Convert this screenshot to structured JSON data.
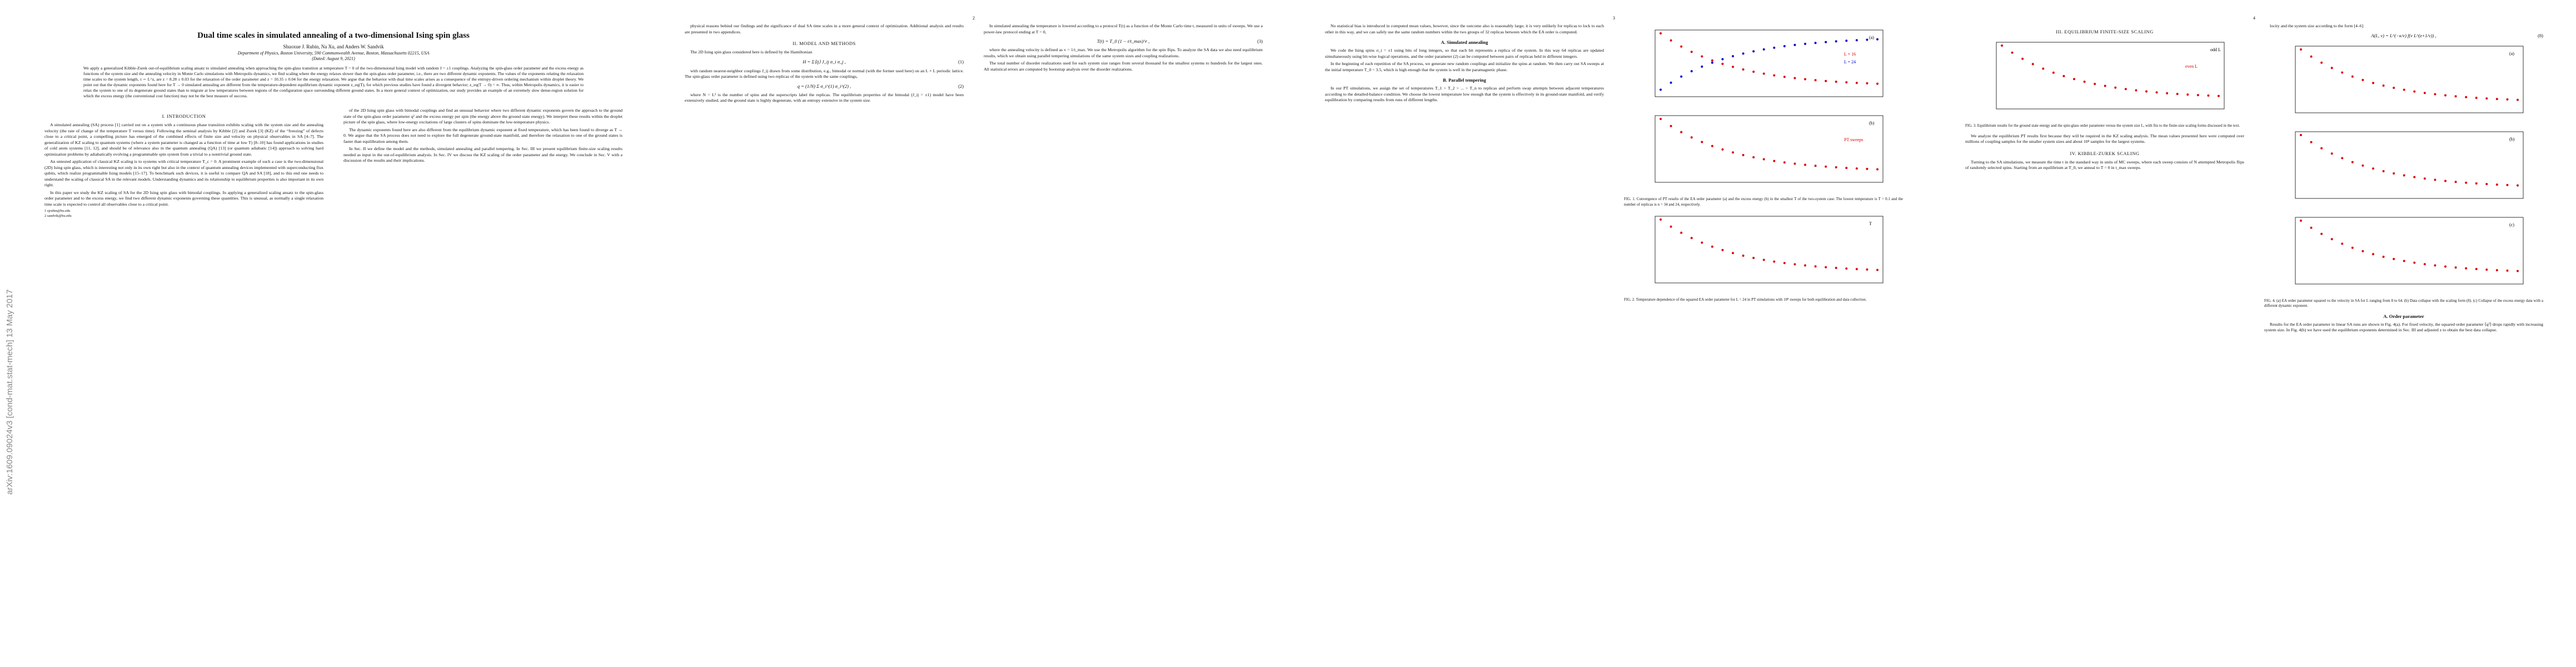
{
  "side_stamp": "arXiv:1609.09024v3  [cond-mat.stat-mech]  13 May 2017",
  "pages": [
    {
      "number": null,
      "top": [
        {
          "kind": "title",
          "text": "Dual time scales in simulated annealing of a two-dimensional Ising spin glass"
        },
        {
          "kind": "authors",
          "text": "Shuoxue J. Rubin, Na Xu, and Anders W. Sandvik"
        },
        {
          "kind": "affil",
          "text": "Department of Physics, Boston University, 590 Commonwealth Avenue, Boston, Massachusetts 02215, USA"
        },
        {
          "kind": "affil",
          "text": "(Dated: August 9, 2021)"
        },
        {
          "kind": "abstract",
          "text": "We apply a generalized Kibble-Zurek out-of-equilibrium scaling ansatz to simulated annealing when approaching the spin-glass transition at temperature T = 0 of the two-dimensional Ising model with random J = ±1 couplings. Analyzing the spin-glass order parameter and the excess energy as functions of the system size and the annealing velocity in Monte Carlo simulations with Metropolis dynamics, we find scaling where the energy relaxes slower than the spin-glass order parameter, i.e., there are two different dynamic exponents. The values of the exponents relating the relaxation time scales to the system length, τ ∼ L^z, are z = 8.28 ± 0.03 for the relaxation of the order parameter and z = 10.35 ± 0.04 for the energy relaxation. We argue that the behavior with dual time scales arises as a consequence of the entropy-driven ordering mechanism within droplet theory. We point out that the dynamic exponents found here for T → 0 simulated annealing are different from the temperature-dependent equilibrium dynamic exponent z_eq(T), for which previous studies have found a divergent behavior; z_eq(T → 0) = ∞. Thus, within Metropolis dynamics, it is easier to relax the system to one of its degenerate ground states than to migrate at low temperatures between regions of the configuration space surrounding different ground states. In a more general context of optimization, our study provides an example of an extremely slow dense-region solution for which the excess energy (the conventional cost function) may not be the best measure of success."
        }
      ],
      "columns": [
        [
          {
            "kind": "heading",
            "text": "I. INTRODUCTION"
          },
          {
            "kind": "p",
            "text": "A simulated annealing (SA) process [1] carried out on a system with a continuous phase transition exhibits scaling with the system size and the annealing velocity (the rate of change of the temperature T versus time). Following the seminal analysis by Kibble [2] and Zurek [3] (KZ) of the “freezing” of defects close to a critical point, a compelling picture has emerged of the combined effects of finite size and velocity on physical observables in SA [4–7]. The generalization of KZ scaling to quantum systems (where a system parameter is changed as a function of time at low T) [8–10] has found applications in studies of cold atom systems [11, 12], and should be of relevance also in the quantum annealing (QA) [13] (or quantum adiabatic [14]) approach to solving hard optimization problems by adiabatically evolving a programmable spin system from a trivial to a nontrivial ground state."
          },
          {
            "kind": "p",
            "text": "An untested application of classical KZ scaling is to systems with critical temperature T_c = 0. A prominent example of such a case is the two-dimensional (2D) Ising spin glass, which is interesting not only in its own right but also in the context of quantum annealing devices implemented with superconducting flux qubits, which realize programmable Ising models [15–17]. To benchmark such devices, it is useful to compare QA and SA [18], and to this end one needs to understand the scaling of classical SA in the relevant models. Understanding dynamics and its relationship to equilibrium properties is also important in its own right."
          },
          {
            "kind": "p",
            "text": "In this paper we study the KZ scaling of SA for the 2D Ising spin glass with bimodal couplings. In applying a generalized scaling ansatz to the spin-glass order parameter and to the excess energy, we find two different dynamic exponents governing these quantities. This is unusual, as normally a single relaxation time scale is expected to control all observables close to a critical point."
          },
          {
            "kind": "footnote",
            "text": "1 sjrubin@bu.edu"
          },
          {
            "kind": "footnote",
            "text": "2 sandvik@bu.edu"
          }
        ],
        [
          {
            "kind": "p",
            "text": "of the 2D Ising spin glass with bimodal couplings and find an unusual behavior where two different dynamic exponents govern the approach to the ground state of the spin-glass order parameter q² and the excess energy per spin (the energy above the ground state energy). We interpret these results within the droplet picture of the spin glass, where low-energy excitations of large clusters of spins dominate the low-temperature physics."
          },
          {
            "kind": "p",
            "text": "The dynamic exponents found here are also different from the equilibrium dynamic exponent at fixed temperature, which has been found to diverge as T → 0. We argue that the SA process does not need to explore the full degenerate ground-state manifold, and therefore the relaxation to one of the ground states is faster than equilibration among them."
          },
          {
            "kind": "p",
            "text": "In Sec. II we define the model and the methods, simulated annealing and parallel tempering. In Sec. III we present equilibrium finite-size scaling results needed as input in the out-of-equilibrium analysis. In Sec. IV we discuss the KZ scaling of the order parameter and the energy. We conclude in Sec. V with a discussion of the results and their implications."
          }
        ]
      ]
    },
    {
      "number": "2",
      "top": [],
      "columns": [
        [
          {
            "kind": "p",
            "text": "physical reasons behind our findings and the significance of dual SA time scales in a more general context of optimization. Additional analysis and results are presented in two appendices."
          },
          {
            "kind": "heading",
            "text": "II. MODEL AND METHODS"
          },
          {
            "kind": "p",
            "text": "The 2D Ising spin glass considered here is defined by the Hamiltonian"
          },
          {
            "kind": "eq",
            "text": "H = Σ⟨ij⟩ J_ij σ_i σ_j ,",
            "number": "(1)"
          },
          {
            "kind": "p",
            "text": "with random nearest-neighbor couplings J_ij drawn from some distribution, e.g., bimodal or normal (with the former used here) on an L × L periodic lattice. The spin-glass order parameter is defined using two replicas of the system with the same couplings,"
          },
          {
            "kind": "eq",
            "text": "q = (1/N) Σ σ_i^(1) σ_i^(2) ,",
            "number": "(2)"
          },
          {
            "kind": "p",
            "text": "where N = L² is the number of spins and the superscripts label the replicas. The equilibrium properties of the bimodal (J_ij = ±1) model have been extensively studied, and the ground state is highly degenerate, with an entropy extensive in the system size."
          }
        ],
        [
          {
            "kind": "p",
            "text": "In simulated annealing the temperature is lowered according to a protocol T(t) as a function of the Monte Carlo time t, measured in units of sweeps. We use a power-law protocol ending at T = 0,"
          },
          {
            "kind": "eq",
            "text": "T(t) = T_0 (1 − t/t_max)^r ,",
            "number": "(3)"
          },
          {
            "kind": "p",
            "text": "where the annealing velocity is defined as v = 1/t_max. We use the Metropolis algorithm for the spin flips. To analyze the SA data we also need equilibrium results, which we obtain using parallel tempering simulations of the same system sizes and coupling realizations."
          },
          {
            "kind": "p",
            "text": "The total number of disorder realizations used for each system size ranges from several thousand for the smallest systems to hundreds for the largest ones. All statistical errors are computed by bootstrap analysis over the disorder realizations."
          }
        ]
      ]
    },
    {
      "number": "3",
      "top": [],
      "columns": [
        [
          {
            "kind": "p",
            "text": "No statistical bias is introduced in computed mean values, however, since the outcome also is reasonably large; it is very unlikely for replicas to lock to each other in this way, and we can safely use the same random numbers within the two groups of 32 replicas between which the EA order is computed."
          },
          {
            "kind": "subheading",
            "text": "A. Simulated annealing"
          },
          {
            "kind": "p",
            "text": "We code the Ising spins σ_i = ±1 using bits of long integers, so that each bit represents a replica of the system. In this way 64 replicas are updated simultaneously using bit-wise logical operations, and the order parameter (2) can be computed between pairs of replicas held in different integers."
          },
          {
            "kind": "p",
            "text": "In the beginning of each repetition of the SA process, we generate new random couplings and initialize the spins at random. We then carry out SA sweeps at the initial temperature T_0 = 3.5, which is high enough that the system is well in the paramagnetic phase."
          },
          {
            "kind": "subheading",
            "text": "B. Parallel tempering"
          },
          {
            "kind": "p",
            "text": "In our PT simulations, we assign the set of temperatures T_1 > T_2 > ... > T_n to replicas and perform swap attempts between adjacent temperatures according to the detailed-balance condition. We choose the lowest temperature low enough that the system is effectively in its ground-state manifold, and verify equilibration by comparing results from runs of different lengths."
          }
        ],
        [
          {
            "kind": "figure",
            "labels": [
              "(a)",
              "L = 16",
              "L = 24"
            ]
          },
          {
            "kind": "figure",
            "labels": [
              "(b)",
              "PT sweeps"
            ]
          },
          {
            "kind": "caption",
            "text": "FIG. 1. Convergence of PT results of the EA order parameter (a) and the excess energy (b) in the smallest T of the two-system case. The lowest temperature is T = 0.1 and the number of replicas is n = 34 and 24, respectively."
          },
          {
            "kind": "figure",
            "labels": [
              "T"
            ]
          },
          {
            "kind": "caption",
            "text": "FIG. 2. Temperature dependence of the squared EA order parameter for L = 24 in PT simulations with 10⁸ sweeps for both equilibration and data collection."
          }
        ]
      ]
    },
    {
      "number": "4",
      "top": [],
      "columns": [
        [
          {
            "kind": "heading",
            "text": "III. EQUILIBRIUM FINITE-SIZE SCALING"
          },
          {
            "kind": "figure",
            "labels": [
              "odd L",
              "even L"
            ]
          },
          {
            "kind": "caption",
            "text": "FIG. 3. Equilibrium results for the ground state energy and the spin-glass order parameter versus the system size L, with fits to the finite-size scaling forms discussed in the text."
          },
          {
            "kind": "p",
            "text": "We analyze the equilibrium PT results first because they will be required in the KZ scaling analysis. The mean values presented here were computed over millions of coupling samples for the smaller system sizes and about 10⁴ samples for the largest systems."
          },
          {
            "kind": "heading",
            "text": "IV. KIBBLE-ZUREK SCALING"
          },
          {
            "kind": "p",
            "text": "Turning to the SA simulations, we measure the time t in the standard way in units of MC sweeps, where each sweep consists of N attempted Metropolis flips of randomly selected spins. Starting from an equilibrium at T_0, we anneal to T = 0 in t_max sweeps."
          }
        ],
        [
          {
            "kind": "p",
            "text": "locity and the system size according to the form [4–6]"
          },
          {
            "kind": "eq",
            "text": "A(L, v) = L^(−κ/ν) f(v L^(z+1/ν)) ,",
            "number": "(8)"
          },
          {
            "kind": "figure",
            "labels": [
              "(a)"
            ]
          },
          {
            "kind": "figure",
            "labels": [
              "(b)"
            ]
          },
          {
            "kind": "figure",
            "labels": [
              "(c)"
            ]
          },
          {
            "kind": "caption",
            "text": "FIG. 4. (a) EA order parameter squared vs the velocity in SA for L ranging from 8 to 64. (b) Data collapse with the scaling form (8). (c) Collapse of the excess energy data with a different dynamic exponent."
          },
          {
            "kind": "subheading",
            "text": "A. Order parameter"
          },
          {
            "kind": "p",
            "text": "Results for the EA order parameter in linear SA runs are shown in Fig. 4(a). For fixed velocity, the squared order parameter ⟨q²⟩ drops rapidly with increasing system size. In Fig. 4(b) we have used the equilibrium exponents determined in Sec. III and adjusted z to obtain the best data collapse."
          }
        ]
      ]
    }
  ]
}
